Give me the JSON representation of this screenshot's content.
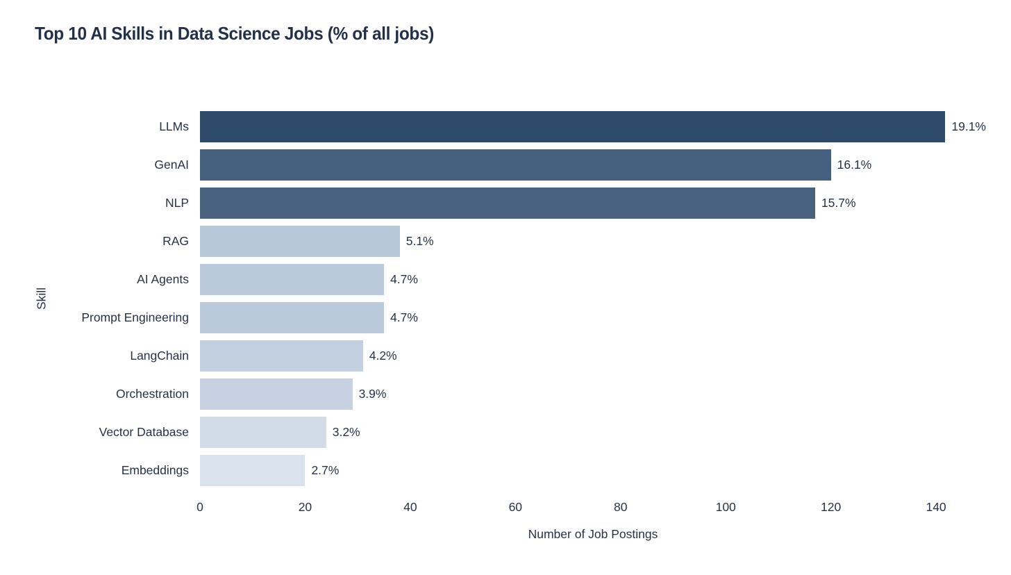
{
  "title": "Top 10 AI Skills in Data Science Jobs (% of all jobs)",
  "colors": {
    "background": "#ffffff",
    "title_text": "#22304a",
    "axis_text": "#263346"
  },
  "chart_data": {
    "type": "bar",
    "orientation": "horizontal",
    "title": "Top 10 AI Skills in Data Science Jobs (% of all jobs)",
    "xlabel": "Number of Job Postings",
    "ylabel": "Skill",
    "xlim": [
      0,
      149.5
    ],
    "xticks": [
      0,
      20,
      40,
      60,
      80,
      100,
      120,
      140
    ],
    "grid": false,
    "legend": false,
    "categories": [
      "LLMs",
      "GenAI",
      "NLP",
      "RAG",
      "AI Agents",
      "Prompt Engineering",
      "LangChain",
      "Orchestration",
      "Vector Database",
      "Embeddings"
    ],
    "values": [
      142,
      120,
      117,
      38,
      35,
      35,
      31,
      29,
      24,
      20
    ],
    "bar_labels": [
      "19.1%",
      "16.1%",
      "15.7%",
      "5.1%",
      "4.7%",
      "4.7%",
      "4.2%",
      "3.9%",
      "3.2%",
      "2.7%"
    ],
    "bar_colors": [
      "#2e4a6b",
      "#46617f",
      "#48627f",
      "#b7c8da",
      "#bac9dc",
      "#bac9dc",
      "#c3d0df",
      "#c6d2e1",
      "#d2dce8",
      "#dae3ed"
    ]
  }
}
